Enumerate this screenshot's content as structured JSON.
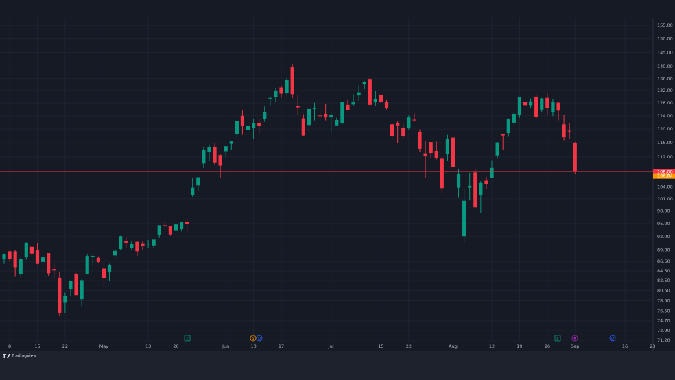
{
  "chart_data": {
    "type": "candlestick",
    "log_scale": true,
    "grid": true,
    "up_color": "#089981",
    "down_color": "#f23645",
    "branding": "TradingView",
    "categories": [
      null,
      "8",
      null,
      null,
      null,
      null,
      "15",
      null,
      null,
      null,
      null,
      "22",
      null,
      null,
      null,
      null,
      null,
      null,
      "May",
      null,
      null,
      null,
      null,
      null,
      null,
      null,
      "13",
      null,
      null,
      null,
      null,
      "20",
      null,
      null,
      null,
      null,
      null,
      null,
      null,
      null,
      "Jun",
      null,
      null,
      null,
      null,
      "10",
      null,
      null,
      null,
      null,
      "17",
      null,
      null,
      null,
      null,
      null,
      null,
      null,
      null,
      "Jul",
      null,
      null,
      null,
      null,
      null,
      null,
      null,
      null,
      "15",
      null,
      null,
      null,
      null,
      "22",
      null,
      null,
      null,
      null,
      null,
      null,
      null,
      "Aug",
      null,
      null,
      null,
      null,
      null,
      null,
      "12",
      null,
      null,
      null,
      null,
      "19",
      null,
      null,
      null,
      null,
      "26",
      null,
      null,
      null,
      null,
      "Sep",
      null,
      null,
      null,
      null,
      null,
      null,
      null,
      null,
      "16",
      null,
      null,
      null,
      null,
      "23"
    ],
    "open": [
      87.0,
      88.7,
      88.7,
      83.9,
      87.5,
      89.7,
      89.0,
      86.4,
      88.3,
      84.9,
      83.1,
      78.1,
      80.8,
      83.9,
      78.8,
      83.8,
      87.6,
      87.3,
      85.0,
      84.2,
      87.8,
      89.2,
      91.0,
      89.5,
      90.8,
      90.5,
      90.4,
      90.0,
      92.4,
      94.6,
      94.4,
      93.3,
      93.7,
      95.4,
      102.0,
      104.4,
      110.2,
      113.5,
      114.7,
      112.5,
      113.6,
      115.7,
      118.4,
      124.0,
      119.8,
      120.4,
      121.8,
      123.1,
      129.4,
      129.96,
      132.99,
      131.1,
      139.8,
      127.1,
      123.2,
      121.2,
      126.1,
      124.1,
      124.6,
      123.5,
      121.1,
      121.7,
      127.4,
      127.5,
      130.4,
      134.0,
      135.8,
      128.3,
      130.6,
      128.4,
      121.4,
      121.8,
      120.4,
      120.4,
      122.8,
      119.2,
      113.0,
      116.2,
      113.7,
      111.5,
      112.9,
      117.5,
      103.8,
      92.1,
      103.8,
      107.8,
      102.0,
      105.6,
      106.3,
      112.4,
      118.5,
      118.8,
      121.9,
      124.3,
      128.4,
      127.3,
      130.0,
      125.9,
      129.6,
      125.0,
      128.1,
      121.4,
      119.5,
      116.0,
      null,
      null,
      null,
      null,
      null,
      null,
      null,
      null,
      null,
      null,
      null,
      null,
      null,
      null
    ],
    "high": [
      88.2,
      88.8,
      89.0,
      87.4,
      90.7,
      90.1,
      90.6,
      88.1,
      88.3,
      86.1,
      84.3,
      80.1,
      82.6,
      84.0,
      82.8,
      88.0,
      88.0,
      87.6,
      86.4,
      86.0,
      89.2,
      92.2,
      91.8,
      91.0,
      91.0,
      91.0,
      91.2,
      91.3,
      94.6,
      95.6,
      94.5,
      95.3,
      95.4,
      96.0,
      106.3,
      106.5,
      114.9,
      115.5,
      115.8,
      112.7,
      115.0,
      116.6,
      122.4,
      125.6,
      121.7,
      123.1,
      122.9,
      126.9,
      129.8,
      132.8,
      133.7,
      136.3,
      140.8,
      130.6,
      124.5,
      126.5,
      128.1,
      126.4,
      127.7,
      124.8,
      123.4,
      128.3,
      128.9,
      130.8,
      133.8,
      135.1,
      136.2,
      131.9,
      131.4,
      128.9,
      121.9,
      122.4,
      121.6,
      124.1,
      124.7,
      119.9,
      116.6,
      116.2,
      116.3,
      111.99,
      118.3,
      120.2,
      108.7,
      103.4,
      107.7,
      108.8,
      105.5,
      106.6,
      111.1,
      116.2,
      118.6,
      123.2,
      125.0,
      130.0,
      129.9,
      129.4,
      130.75,
      129.6,
      131.3,
      129.2,
      128.3,
      124.4,
      121.75,
      116.2,
      null,
      null,
      null,
      null,
      null,
      null,
      null,
      null,
      null,
      null,
      null,
      null,
      null,
      null
    ],
    "low": [
      86.0,
      86.6,
      83.3,
      83.3,
      86.9,
      87.7,
      85.9,
      86.0,
      83.4,
      83.1,
      75.6,
      76.2,
      79.5,
      79.6,
      77.5,
      83.8,
      85.6,
      86.1,
      81.2,
      82.5,
      87.0,
      88.9,
      89.5,
      89.0,
      87.7,
      89.0,
      89.5,
      89.3,
      91.7,
      94.1,
      92.2,
      93.1,
      93.2,
      93.2,
      101.5,
      103.0,
      109.0,
      110.9,
      109.7,
      106.2,
      112.0,
      114.0,
      117.5,
      118.3,
      118.0,
      117.0,
      118.7,
      122.1,
      127.1,
      128.3,
      129.6,
      130.7,
      129.5,
      124.3,
      118.0,
      119.3,
      122.6,
      122.9,
      122.6,
      118.8,
      121.0,
      121.4,
      125.7,
      127.0,
      128.7,
      132.4,
      127.0,
      127.2,
      127.2,
      125.97,
      116.7,
      116.0,
      117.4,
      119.9,
      122.1,
      113.4,
      106.3,
      111.6,
      111.3,
      102.5,
      110.9,
      106.8,
      101.4,
      90.7,
      100.6,
      98.7,
      97.5,
      103.4,
      106.3,
      111.6,
      114.1,
      117.7,
      121.2,
      123.4,
      125.9,
      126.5,
      123.1,
      125.2,
      124.4,
      123.9,
      122.6,
      116.7,
      117.2,
      107.3,
      null,
      null,
      null,
      null,
      null,
      null,
      null,
      null,
      null,
      null,
      null,
      null,
      null,
      null
    ],
    "close": [
      88.0,
      87.1,
      85.3,
      87.0,
      90.6,
      88.2,
      86.0,
      87.4,
      84.0,
      84.6,
      76.2,
      79.5,
      82.4,
      79.6,
      82.6,
      87.7,
      87.7,
      86.4,
      83.0,
      85.8,
      88.8,
      92.1,
      90.6,
      90.4,
      88.7,
      89.9,
      90.4,
      91.3,
      94.6,
      94.4,
      92.5,
      94.8,
      95.4,
      94.9,
      103.8,
      106.5,
      114.0,
      114.8,
      110.5,
      109.6,
      115.0,
      116.4,
      122.4,
      120.9,
      120.9,
      121.8,
      120.9,
      125.2,
      129.6,
      131.9,
      130.98,
      135.6,
      130.8,
      126.6,
      118.1,
      126.1,
      126.4,
      124.0,
      123.5,
      124.3,
      122.7,
      128.3,
      125.8,
      128.2,
      131.4,
      134.9,
      127.4,
      129.2,
      128.4,
      126.4,
      118.0,
      121.1,
      117.9,
      123.5,
      122.6,
      114.3,
      112.3,
      113.1,
      111.6,
      103.7,
      117.0,
      109.2,
      107.3,
      100.5,
      104.3,
      98.9,
      105.0,
      104.8,
      109.0,
      116.1,
      118.1,
      122.9,
      124.6,
      130.0,
      127.3,
      128.5,
      123.7,
      129.4,
      126.5,
      128.3,
      125.6,
      117.6,
      119.4,
      108.0,
      null,
      null,
      null,
      null,
      null,
      null,
      null,
      null,
      null,
      null,
      null,
      null,
      null,
      null
    ],
    "ylim": [
      70.84,
      156.9
    ],
    "yticks": [
      {
        "value": 71.2,
        "label": "71.20"
      },
      {
        "value": 72.9,
        "label": "72.90"
      },
      {
        "value": 74.7,
        "label": "74.70"
      },
      {
        "value": 76.5,
        "label": "76.50"
      },
      {
        "value": 78.5,
        "label": "78.50"
      },
      {
        "value": 80.5,
        "label": "80.50"
      },
      {
        "value": 82.5,
        "label": "82.50"
      },
      {
        "value": 84.5,
        "label": "84.50"
      },
      {
        "value": 86.5,
        "label": "86.50"
      },
      {
        "value": 89,
        "label": "89.00"
      },
      {
        "value": 92,
        "label": "92.00"
      },
      {
        "value": 95,
        "label": "95.00"
      },
      {
        "value": 98,
        "label": "98.00"
      },
      {
        "value": 101,
        "label": "101.00"
      },
      {
        "value": 104,
        "label": "104.00"
      },
      {
        "value": 112,
        "label": "112.00"
      },
      {
        "value": 116,
        "label": "116.00"
      },
      {
        "value": 120,
        "label": "120.00"
      },
      {
        "value": 124,
        "label": "124.00"
      },
      {
        "value": 128,
        "label": "128.00"
      },
      {
        "value": 132,
        "label": "132.00"
      },
      {
        "value": 136,
        "label": "136.00"
      },
      {
        "value": 140,
        "label": "140.00"
      },
      {
        "value": 145,
        "label": "145.00"
      },
      {
        "value": 150,
        "label": "150.00"
      },
      {
        "value": 155,
        "label": "155.00"
      }
    ],
    "price_lines": [
      {
        "value": 108.0,
        "label": "108.00",
        "color": "#f23645"
      },
      {
        "value": 106.84,
        "label": "106.84",
        "color": "#ff9800"
      }
    ],
    "events": [
      "E",
      "S",
      "D",
      "E",
      "D"
    ]
  }
}
